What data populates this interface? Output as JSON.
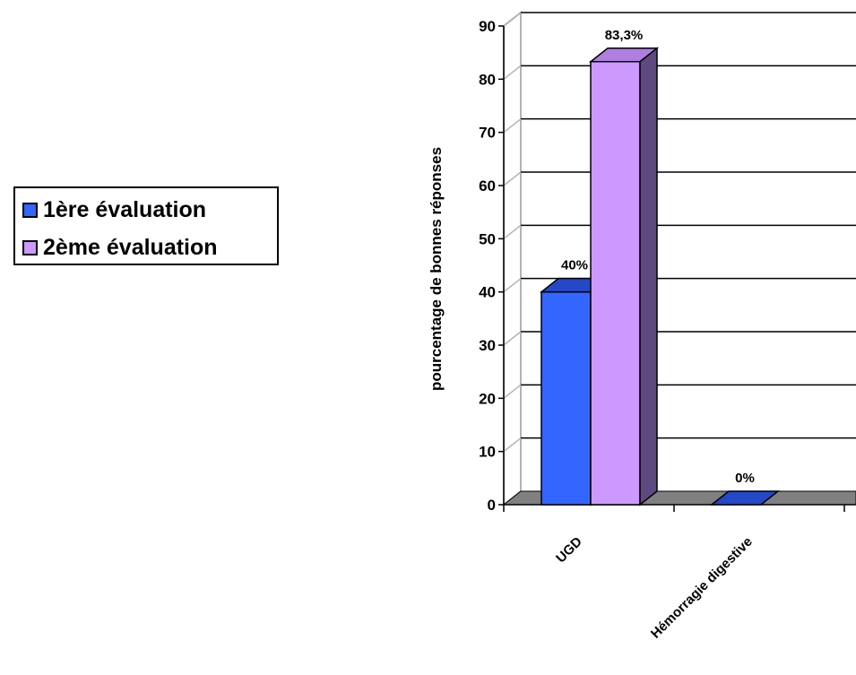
{
  "colors": {
    "series1": "#3366ff",
    "series1_top": "#2448c8",
    "series2": "#cc99ff",
    "series2_top": "#b07ee0",
    "series2_side": "#5e4a80",
    "floor": "#808080",
    "wall_line": "#b3b3b3"
  },
  "chart_data": {
    "type": "bar",
    "view": "3d-clustered",
    "categories": [
      "UGD",
      "Hémorragie digestive"
    ],
    "series": [
      {
        "name": "1ère évaluation",
        "values": [
          40,
          0
        ],
        "labels": [
          "40%",
          "0%"
        ]
      },
      {
        "name": "2ème évaluation",
        "values": [
          83.3,
          null
        ],
        "labels": [
          "83,3%",
          null
        ]
      }
    ],
    "ylabel": "pourcentage de bonnes réponses",
    "xlabel": "",
    "ylim": [
      0,
      90
    ],
    "yticks": [
      0,
      10,
      20,
      30,
      40,
      50,
      60,
      70,
      80,
      90
    ],
    "grid": true,
    "legend_position": "left"
  }
}
